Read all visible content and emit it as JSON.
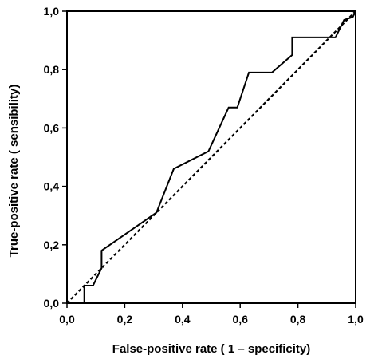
{
  "chart_data": {
    "type": "line",
    "title": "",
    "xlabel": "False-positive rate ( 1 – specificity)",
    "ylabel": "True-positive rate ( sensibility)",
    "xlim": [
      0,
      1
    ],
    "ylim": [
      0,
      1
    ],
    "x_ticks": [
      "0,0",
      "0,2",
      "0,4",
      "0,6",
      "0,8",
      "1,0"
    ],
    "y_ticks": [
      "0,0",
      "0,2",
      "0,4",
      "0,6",
      "0,8",
      "1,0"
    ],
    "grid": false,
    "legend": "none",
    "series": [
      {
        "style": "solid",
        "color": "#000000",
        "x": [
          0.06,
          0.06,
          0.09,
          0.12,
          0.12,
          0.31,
          0.37,
          0.49,
          0.56,
          0.59,
          0.63,
          0.71,
          0.78,
          0.78,
          0.93,
          0.96,
          0.99,
          1.0
        ],
        "y": [
          0.0,
          0.06,
          0.06,
          0.12,
          0.18,
          0.31,
          0.46,
          0.52,
          0.67,
          0.67,
          0.79,
          0.79,
          0.85,
          0.91,
          0.91,
          0.97,
          0.98,
          1.0
        ]
      },
      {
        "style": "dashed",
        "color": "#000000",
        "x": [
          0,
          1
        ],
        "y": [
          0,
          1
        ]
      }
    ]
  }
}
